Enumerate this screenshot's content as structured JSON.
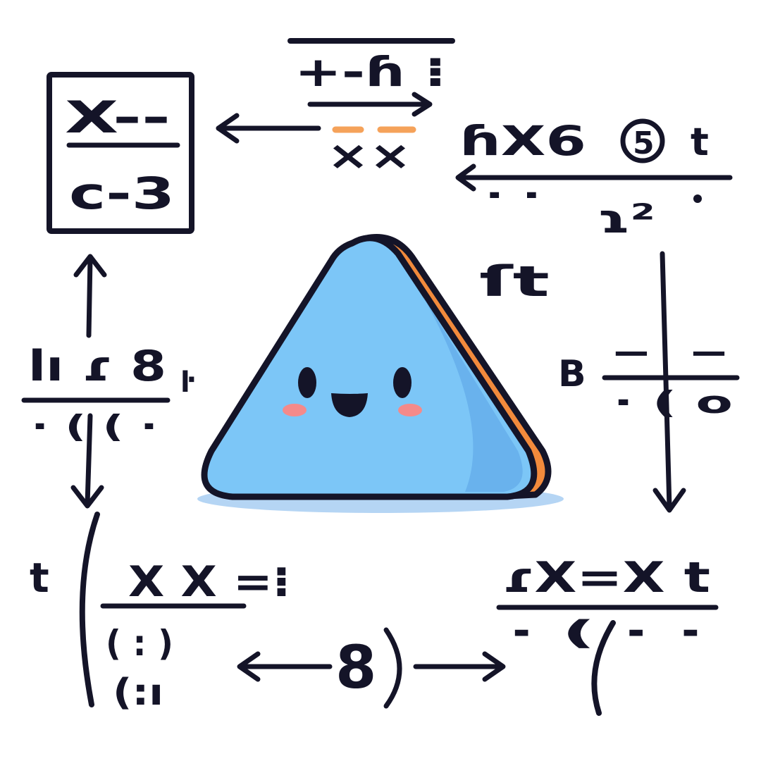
{
  "colors": {
    "ink": "#141428",
    "mascot_body": "#7cc6f7",
    "mascot_shadow": "#5aa2e6",
    "mascot_edge": "#f28a3c",
    "blush": "#f48a8a",
    "accent_dash": "#f5a25a"
  },
  "mascot": {
    "shape": "triangle",
    "expression": "smiling"
  },
  "icons": {
    "arrows": "arrow-icon",
    "circled_symbol": "circled-five-icon"
  },
  "notes": {
    "top_center": {
      "numerator": "+-ɦ ⁝",
      "denominator": "××"
    },
    "top_left": {
      "numerator": "X--",
      "denominator": "c-3"
    },
    "top_right": {
      "numerator": "ɦX6",
      "circled": "5",
      "suffix": "t",
      "denominator": "·  ·",
      "sub": "ɿ²"
    },
    "near_mascot": "ſt",
    "left_middle": {
      "numerator": "lı ɾ 8",
      "suffix": "ŀ",
      "denominator": "· ( (  ·"
    },
    "right_middle": {
      "prefix": "B",
      "numerator": "-     -",
      "denominator": "· (  o"
    },
    "bottom_left": {
      "prefix": "t",
      "numerator": "X X =⁝",
      "denominator": "( : )",
      "sub": "(:ı"
    },
    "bottom_center": "8",
    "bottom_right": {
      "numerator": "ɾX=X t",
      "denominator": "·  (  ·  ·"
    }
  }
}
